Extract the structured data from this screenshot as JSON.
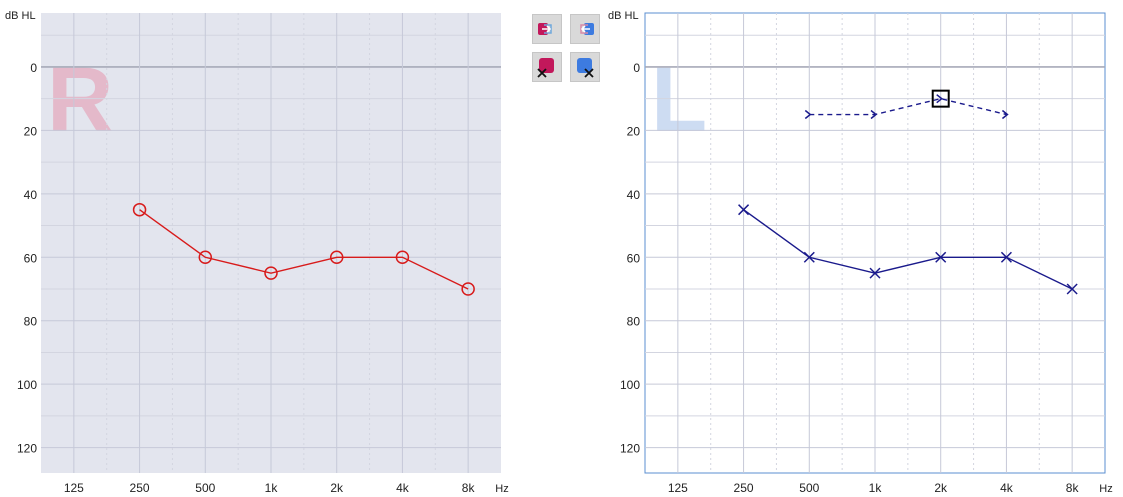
{
  "ui": {
    "db_unit": "dB HL",
    "hz_unit": "Hz",
    "toolbar_icons": [
      "copy-to-right-icon",
      "copy-to-left-icon",
      "clear-right-icon",
      "clear-left-icon"
    ]
  },
  "colors": {
    "right_panel_bg": "#e3e5ee",
    "right_series": "#d81b1b",
    "right_letter": "#e4b9ca",
    "left_panel_bg": "#ffffff",
    "left_border": "#5b8fd0",
    "left_series": "#1a1a8c",
    "left_letter": "#cddcf2",
    "grid_major": "#c6c9d8",
    "grid_minor": "#d3d5e0",
    "axis_text": "#222222",
    "zero_line": "#a7aab8"
  },
  "chart_data": [
    {
      "type": "line",
      "panel_letter": "R",
      "x_ticks": [
        "125",
        "250",
        "500",
        "1k",
        "2k",
        "4k",
        "8k"
      ],
      "y_ticks": [
        "0",
        "20",
        "40",
        "60",
        "80",
        "100",
        "120"
      ],
      "ylim": [
        -17,
        128
      ],
      "y_inverted": true,
      "grid": true,
      "series": [
        {
          "symbol": "circle",
          "x": [
            "250",
            "500",
            "1k",
            "2k",
            "4k",
            "8k"
          ],
          "values": [
            45,
            60,
            65,
            60,
            60,
            70
          ]
        }
      ]
    },
    {
      "type": "line",
      "panel_letter": "L",
      "x_ticks": [
        "125",
        "250",
        "500",
        "1k",
        "2k",
        "4k",
        "8k"
      ],
      "y_ticks": [
        "0",
        "20",
        "40",
        "60",
        "80",
        "100",
        "120"
      ],
      "ylim": [
        -17,
        128
      ],
      "y_inverted": true,
      "grid": true,
      "series": [
        {
          "symbol": "x",
          "x": [
            "250",
            "500",
            "1k",
            "2k",
            "4k",
            "8k"
          ],
          "values": [
            45,
            60,
            65,
            60,
            60,
            70
          ]
        },
        {
          "symbol": "bone-arrow",
          "dashed": true,
          "x": [
            "500",
            "1k",
            "2k",
            "4k"
          ],
          "values": [
            15,
            15,
            10,
            15
          ]
        },
        {
          "symbol": "square",
          "x": [
            "2k"
          ],
          "values": [
            10
          ]
        }
      ]
    }
  ]
}
